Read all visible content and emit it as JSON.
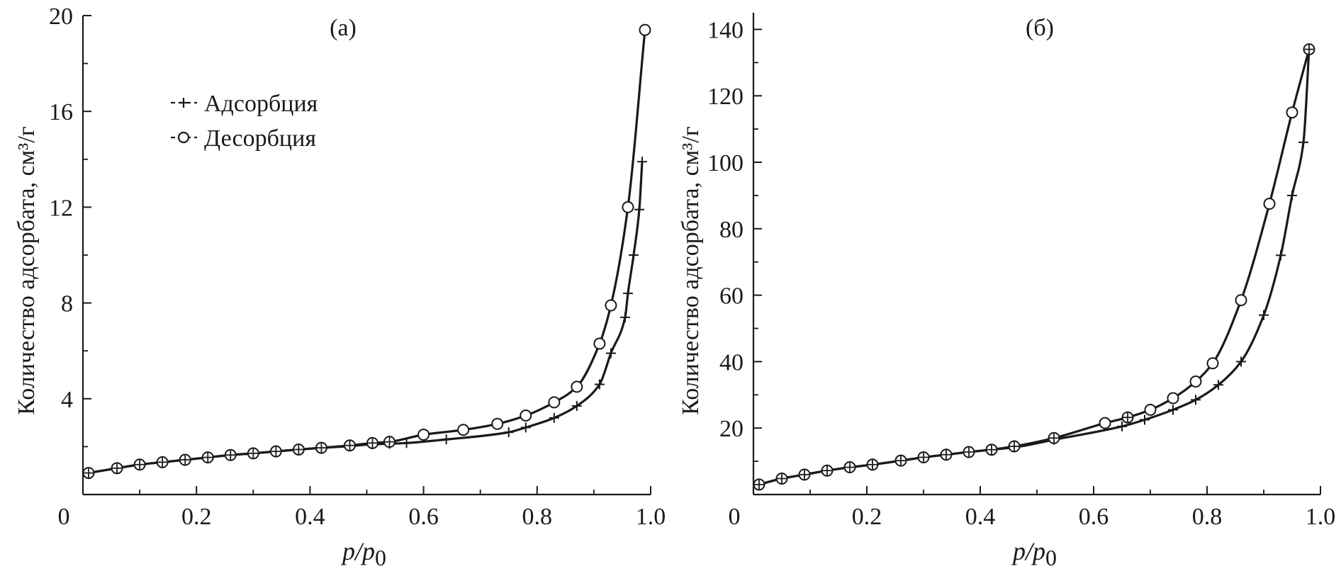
{
  "chart_data": [
    {
      "type": "line",
      "panel_label": "(а)",
      "xlabel_main": "p/p",
      "xlabel_sub": "0",
      "ylabel": "Количество адсорбата, см³/г",
      "xlim": [
        0,
        1.0
      ],
      "ylim": [
        0,
        20
      ],
      "x_ticks": [
        "0",
        "0.2",
        "0.4",
        "0.6",
        "0.8",
        "1.0"
      ],
      "x_tick_values": [
        0,
        0.2,
        0.4,
        0.6,
        0.8,
        1.0
      ],
      "y_ticks": [
        "4",
        "8",
        "12",
        "16",
        "20"
      ],
      "y_tick_values": [
        4,
        8,
        12,
        16,
        20
      ],
      "grid": false,
      "legend": {
        "placement": "top-left",
        "entries": [
          {
            "label": "Адсорбция",
            "marker": "plus"
          },
          {
            "label": "Десорбция",
            "marker": "circle"
          }
        ]
      },
      "series": [
        {
          "name": "Адсорбция",
          "marker": "plus",
          "x": [
            0.01,
            0.06,
            0.1,
            0.14,
            0.18,
            0.22,
            0.26,
            0.3,
            0.34,
            0.38,
            0.42,
            0.47,
            0.51,
            0.54,
            0.57,
            0.64,
            0.75,
            0.78,
            0.83,
            0.87,
            0.91,
            0.93,
            0.955,
            0.96,
            0.97,
            0.98,
            0.985
          ],
          "values": [
            0.9,
            1.1,
            1.25,
            1.35,
            1.45,
            1.55,
            1.65,
            1.72,
            1.8,
            1.88,
            1.95,
            2.02,
            2.1,
            2.12,
            2.15,
            2.3,
            2.6,
            2.8,
            3.2,
            3.7,
            4.6,
            5.9,
            7.4,
            8.4,
            10.0,
            11.9,
            13.9
          ]
        },
        {
          "name": "Десорбция",
          "marker": "circle",
          "x": [
            0.01,
            0.06,
            0.1,
            0.14,
            0.18,
            0.22,
            0.26,
            0.3,
            0.34,
            0.38,
            0.42,
            0.47,
            0.51,
            0.54,
            0.6,
            0.67,
            0.73,
            0.78,
            0.83,
            0.87,
            0.91,
            0.93,
            0.96,
            0.99
          ],
          "values": [
            0.9,
            1.1,
            1.25,
            1.35,
            1.45,
            1.55,
            1.65,
            1.72,
            1.8,
            1.88,
            1.95,
            2.05,
            2.15,
            2.2,
            2.5,
            2.7,
            2.95,
            3.3,
            3.85,
            4.5,
            6.3,
            7.9,
            12.0,
            19.4
          ]
        }
      ]
    },
    {
      "type": "line",
      "panel_label": "(б)",
      "xlabel_main": "p/p",
      "xlabel_sub": "0",
      "ylabel": "Количество адсорбата, см³/г",
      "xlim": [
        0,
        1.0
      ],
      "ylim": [
        0,
        145
      ],
      "x_ticks": [
        "0",
        "0.2",
        "0.4",
        "0.6",
        "0.8",
        "1.0"
      ],
      "x_tick_values": [
        0,
        0.2,
        0.4,
        0.6,
        0.8,
        1.0
      ],
      "y_ticks": [
        "20",
        "40",
        "60",
        "80",
        "100",
        "120",
        "140"
      ],
      "y_tick_values": [
        20,
        40,
        60,
        80,
        100,
        120,
        140
      ],
      "grid": false,
      "series": [
        {
          "name": "Адсорбция",
          "marker": "plus",
          "x": [
            0.01,
            0.05,
            0.09,
            0.13,
            0.17,
            0.21,
            0.26,
            0.3,
            0.34,
            0.38,
            0.42,
            0.46,
            0.53,
            0.65,
            0.69,
            0.74,
            0.78,
            0.82,
            0.86,
            0.9,
            0.93,
            0.95,
            0.97,
            0.98
          ],
          "values": [
            3,
            4.8,
            6,
            7.2,
            8.2,
            9,
            10.2,
            11.2,
            12,
            12.8,
            13.5,
            14.2,
            16.5,
            20.5,
            22.5,
            25.5,
            28.5,
            33,
            40,
            54,
            72,
            90,
            106,
            134
          ]
        },
        {
          "name": "Десорбция",
          "marker": "circle",
          "x": [
            0.01,
            0.05,
            0.09,
            0.13,
            0.17,
            0.21,
            0.26,
            0.3,
            0.34,
            0.38,
            0.42,
            0.46,
            0.53,
            0.62,
            0.66,
            0.7,
            0.74,
            0.78,
            0.81,
            0.86,
            0.91,
            0.95,
            0.98
          ],
          "values": [
            3,
            4.8,
            6,
            7.2,
            8.2,
            9,
            10.2,
            11.2,
            12,
            12.8,
            13.5,
            14.5,
            17,
            21.5,
            23.2,
            25.5,
            29,
            34,
            39.5,
            58.5,
            87.5,
            115,
            134
          ]
        }
      ]
    }
  ]
}
